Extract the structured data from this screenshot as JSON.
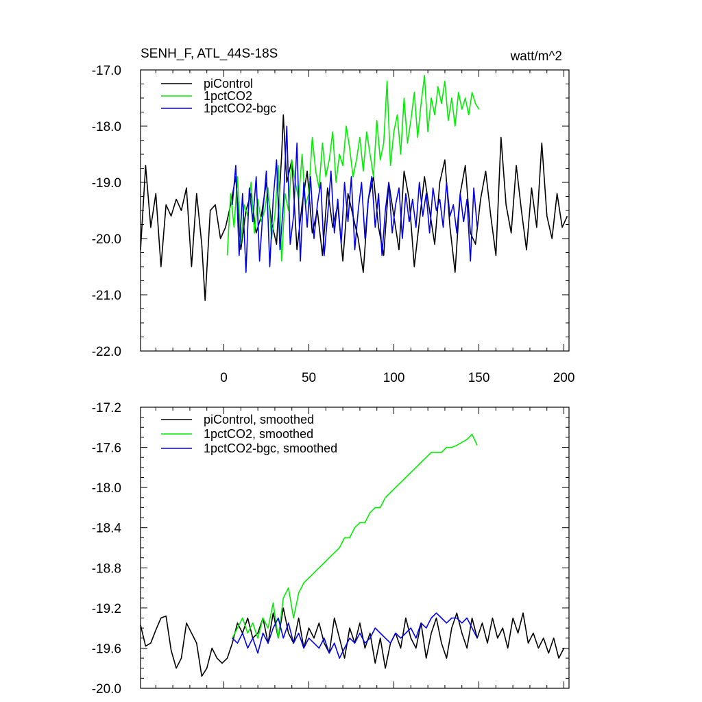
{
  "figure": {
    "title_left": "SENH_F, ATL_44S-18S",
    "title_right": "watt/m^2"
  },
  "colors": {
    "piControl": "#000000",
    "1pctCO2": "#00ee00",
    "1pctCO2-bgc": "#0000ee"
  },
  "chart_data": [
    {
      "type": "line",
      "panel": "top",
      "xlim": [
        -49,
        203
      ],
      "ylim": [
        -22.0,
        -17.0
      ],
      "xticks": [
        0,
        50,
        100,
        150,
        200
      ],
      "xtick_labels": [
        "0",
        "50",
        "100",
        "150",
        "200"
      ],
      "yticks": [
        -22.0,
        -21.0,
        -20.0,
        -19.0,
        -18.0,
        -17.0
      ],
      "ytick_labels": [
        "-22.0",
        "-21.0",
        "-20.0",
        "-19.0",
        "-18.0",
        "-17.0"
      ],
      "legend_position": "top-left",
      "series": [
        {
          "name": "piControl",
          "color": "#000000",
          "x": [
            -49,
            -46,
            -43,
            -40,
            -37,
            -34,
            -31,
            -28,
            -25,
            -22,
            -19,
            -16,
            -13,
            -11,
            -8,
            -5,
            -2,
            1,
            4,
            7,
            10,
            13,
            16,
            19,
            22,
            25,
            28,
            31,
            34,
            35,
            37,
            40,
            43,
            46,
            49,
            52,
            55,
            58,
            61,
            64,
            67,
            70,
            73,
            76,
            79,
            82,
            85,
            88,
            91,
            94,
            97,
            100,
            103,
            106,
            109,
            112,
            115,
            118,
            121,
            124,
            127,
            130,
            133,
            136,
            139,
            142,
            145,
            148,
            151,
            154,
            157,
            160,
            163,
            166,
            169,
            172,
            175,
            178,
            181,
            184,
            187,
            190,
            193,
            196,
            199,
            202
          ],
          "y": [
            -20.2,
            -18.7,
            -19.8,
            -19.2,
            -20.5,
            -19.4,
            -19.6,
            -19.3,
            -19.5,
            -19.1,
            -20.5,
            -19.2,
            -20.1,
            -21.1,
            -19.5,
            -19.4,
            -20.0,
            -19.8,
            -19.4,
            -18.9,
            -20.2,
            -19.5,
            -19.2,
            -19.9,
            -19.6,
            -19.0,
            -19.7,
            -20.1,
            -18.5,
            -17.8,
            -19.0,
            -18.6,
            -20.2,
            -19.4,
            -18.8,
            -19.9,
            -19.5,
            -20.3,
            -19.1,
            -19.8,
            -19.4,
            -20.4,
            -19.2,
            -19.6,
            -20.0,
            -20.6,
            -19.3,
            -18.9,
            -19.8,
            -20.3,
            -19.0,
            -19.6,
            -20.2,
            -18.8,
            -19.3,
            -20.5,
            -19.7,
            -18.9,
            -19.5,
            -20.1,
            -19.0,
            -18.6,
            -19.8,
            -20.6,
            -19.2,
            -18.7,
            -19.9,
            -20.1,
            -19.3,
            -18.8,
            -19.6,
            -20.3,
            -18.2,
            -19.4,
            -19.9,
            -18.7,
            -19.5,
            -20.2,
            -19.1,
            -19.8,
            -18.3,
            -19.6,
            -20.0,
            -19.2,
            -19.8,
            -19.6
          ]
        },
        {
          "name": "1pctCO2",
          "color": "#00ee00",
          "x": [
            2,
            4,
            6,
            8,
            10,
            12,
            14,
            16,
            18,
            20,
            22,
            24,
            26,
            28,
            30,
            32,
            34,
            36,
            38,
            40,
            42,
            44,
            46,
            48,
            50,
            52,
            54,
            56,
            58,
            60,
            62,
            64,
            66,
            68,
            70,
            72,
            74,
            76,
            78,
            80,
            82,
            84,
            86,
            88,
            90,
            92,
            94,
            96,
            98,
            100,
            102,
            104,
            106,
            108,
            110,
            112,
            114,
            116,
            118,
            120,
            122,
            124,
            126,
            128,
            130,
            132,
            134,
            136,
            138,
            140,
            142,
            144,
            146,
            148,
            150
          ],
          "y": [
            -20.3,
            -19.2,
            -19.8,
            -18.9,
            -20.1,
            -19.4,
            -19.6,
            -19.0,
            -19.9,
            -19.3,
            -19.7,
            -19.5,
            -19.1,
            -20.0,
            -19.6,
            -18.7,
            -20.4,
            -19.2,
            -19.5,
            -18.6,
            -19.0,
            -19.3,
            -18.5,
            -19.4,
            -19.2,
            -18.2,
            -18.8,
            -19.1,
            -18.3,
            -18.9,
            -18.6,
            -18.1,
            -19.0,
            -18.5,
            -18.7,
            -18.0,
            -18.4,
            -18.9,
            -18.6,
            -18.2,
            -18.8,
            -18.1,
            -18.5,
            -18.9,
            -17.9,
            -18.6,
            -18.3,
            -17.2,
            -18.7,
            -18.1,
            -17.8,
            -18.5,
            -17.5,
            -18.3,
            -17.9,
            -17.4,
            -18.2,
            -17.6,
            -17.1,
            -18.1,
            -17.5,
            -17.8,
            -17.3,
            -17.6,
            -17.2,
            -17.9,
            -17.5,
            -18.0,
            -17.4,
            -17.7,
            -17.5,
            -17.8,
            -17.4,
            -17.6,
            -17.7
          ]
        },
        {
          "name": "1pctCO2-bgc",
          "color": "#0000ee",
          "x": [
            5,
            7,
            9,
            11,
            13,
            15,
            17,
            19,
            21,
            23,
            25,
            27,
            29,
            31,
            33,
            35,
            37,
            39,
            41,
            43,
            45,
            47,
            49,
            51,
            53,
            55,
            57,
            59,
            61,
            63,
            65,
            67,
            69,
            71,
            73,
            75,
            77,
            79,
            81,
            83,
            85,
            87,
            89,
            91,
            93,
            95,
            97,
            99,
            101,
            103,
            105,
            107,
            109,
            111,
            113,
            115,
            117,
            119,
            121,
            123,
            125,
            127,
            129,
            131,
            133,
            135,
            137,
            139,
            141,
            143,
            145,
            147,
            149
          ],
          "y": [
            -19.4,
            -18.7,
            -20.3,
            -19.2,
            -20.6,
            -19.1,
            -19.7,
            -18.9,
            -20.4,
            -19.5,
            -18.8,
            -20.5,
            -19.3,
            -18.6,
            -20.2,
            -19.4,
            -18.0,
            -20.1,
            -19.6,
            -18.3,
            -20.4,
            -19.0,
            -19.8,
            -18.9,
            -20.0,
            -19.4,
            -19.0,
            -20.3,
            -19.6,
            -18.8,
            -19.9,
            -19.3,
            -20.1,
            -19.0,
            -19.7,
            -18.9,
            -20.2,
            -19.5,
            -19.0,
            -20.0,
            -19.3,
            -18.9,
            -19.8,
            -19.2,
            -20.3,
            -19.5,
            -19.0,
            -19.9,
            -19.4,
            -19.1,
            -20.0,
            -19.2,
            -19.7,
            -19.3,
            -19.8,
            -19.0,
            -19.6,
            -19.2,
            -19.9,
            -19.1,
            -19.5,
            -19.3,
            -19.8,
            -19.0,
            -19.6,
            -19.4,
            -19.9,
            -19.2,
            -19.7,
            -19.3,
            -20.4,
            -19.1,
            -19.8
          ]
        }
      ]
    },
    {
      "type": "line",
      "panel": "bottom",
      "xlim": [
        -49,
        203
      ],
      "ylim": [
        -20.0,
        -17.2
      ],
      "xticks": [
        0,
        50,
        100,
        150,
        200
      ],
      "yticks": [
        -20.0,
        -19.6,
        -19.2,
        -18.8,
        -18.4,
        -18.0,
        -17.6,
        -17.2
      ],
      "ytick_labels": [
        "-20.0",
        "-19.6",
        "-19.2",
        "-18.8",
        "-18.4",
        "-18.0",
        "-17.6",
        "-17.2"
      ],
      "legend_position": "top-left",
      "series": [
        {
          "name": "piControl, smoothed",
          "color": "#000000",
          "x": [
            -49,
            -46,
            -43,
            -40,
            -37,
            -34,
            -31,
            -28,
            -25,
            -22,
            -19,
            -16,
            -13,
            -10,
            -7,
            -4,
            -1,
            2,
            5,
            8,
            11,
            14,
            17,
            20,
            23,
            26,
            29,
            32,
            35,
            38,
            41,
            44,
            47,
            50,
            53,
            56,
            59,
            62,
            65,
            68,
            71,
            74,
            77,
            80,
            83,
            86,
            89,
            92,
            95,
            98,
            101,
            104,
            107,
            110,
            113,
            116,
            119,
            122,
            125,
            128,
            131,
            134,
            137,
            140,
            143,
            146,
            149,
            152,
            155,
            158,
            161,
            164,
            167,
            170,
            173,
            176,
            179,
            182,
            185,
            188,
            191,
            194,
            197,
            200
          ],
          "y": [
            -19.37,
            -19.58,
            -19.55,
            -19.42,
            -19.3,
            -19.28,
            -19.62,
            -19.8,
            -19.7,
            -19.35,
            -19.45,
            -19.55,
            -19.88,
            -19.8,
            -19.6,
            -19.7,
            -19.75,
            -19.7,
            -19.55,
            -19.35,
            -19.45,
            -19.3,
            -19.5,
            -19.45,
            -19.3,
            -19.55,
            -19.25,
            -19.5,
            -19.2,
            -19.45,
            -19.55,
            -19.3,
            -19.6,
            -19.4,
            -19.5,
            -19.35,
            -19.55,
            -19.65,
            -19.3,
            -19.5,
            -19.7,
            -19.4,
            -19.55,
            -19.35,
            -19.6,
            -19.45,
            -19.75,
            -19.5,
            -19.8,
            -19.55,
            -19.45,
            -19.6,
            -19.3,
            -19.5,
            -19.6,
            -19.35,
            -19.7,
            -19.45,
            -19.3,
            -19.55,
            -19.7,
            -19.4,
            -19.25,
            -19.45,
            -19.6,
            -19.3,
            -19.5,
            -19.35,
            -19.55,
            -19.3,
            -19.5,
            -19.4,
            -19.6,
            -19.3,
            -19.45,
            -19.25,
            -19.55,
            -19.45,
            -19.6,
            -19.5,
            -19.65,
            -19.5,
            -19.7,
            -19.6
          ]
        },
        {
          "name": "1pctCO2, smoothed",
          "color": "#00ee00",
          "x": [
            5,
            8,
            11,
            14,
            17,
            20,
            23,
            26,
            29,
            32,
            35,
            38,
            41,
            44,
            47,
            50,
            53,
            56,
            59,
            62,
            65,
            68,
            71,
            74,
            77,
            80,
            83,
            86,
            89,
            92,
            95,
            98,
            101,
            104,
            107,
            110,
            113,
            116,
            119,
            122,
            125,
            128,
            131,
            134,
            137,
            140,
            143,
            146,
            149
          ],
          "y": [
            -19.5,
            -19.4,
            -19.3,
            -19.45,
            -19.35,
            -19.5,
            -19.3,
            -19.4,
            -19.15,
            -19.5,
            -19.1,
            -19.0,
            -19.3,
            -19.05,
            -18.95,
            -18.9,
            -18.85,
            -18.8,
            -18.75,
            -18.7,
            -18.65,
            -18.6,
            -18.5,
            -18.5,
            -18.4,
            -18.35,
            -18.35,
            -18.25,
            -18.2,
            -18.2,
            -18.1,
            -18.05,
            -18.0,
            -17.95,
            -17.9,
            -17.85,
            -17.8,
            -17.75,
            -17.7,
            -17.65,
            -17.65,
            -17.65,
            -17.6,
            -17.6,
            -17.58,
            -17.55,
            -17.52,
            -17.47,
            -17.58
          ]
        },
        {
          "name": "1pctCO2-bgc, smoothed",
          "color": "#0000ee",
          "x": [
            5,
            8,
            11,
            14,
            17,
            20,
            23,
            26,
            29,
            32,
            35,
            38,
            41,
            44,
            47,
            50,
            53,
            56,
            59,
            62,
            65,
            68,
            71,
            74,
            77,
            80,
            83,
            86,
            89,
            92,
            95,
            98,
            101,
            104,
            107,
            110,
            113,
            116,
            119,
            122,
            125,
            128,
            131,
            134,
            137,
            140,
            143,
            146,
            149
          ],
          "y": [
            -19.5,
            -19.55,
            -19.45,
            -19.6,
            -19.5,
            -19.65,
            -19.45,
            -19.55,
            -19.4,
            -19.3,
            -19.5,
            -19.35,
            -19.55,
            -19.45,
            -19.6,
            -19.5,
            -19.55,
            -19.6,
            -19.5,
            -19.65,
            -19.55,
            -19.7,
            -19.6,
            -19.5,
            -19.55,
            -19.45,
            -19.55,
            -19.5,
            -19.4,
            -19.45,
            -19.5,
            -19.55,
            -19.45,
            -19.5,
            -19.45,
            -19.4,
            -19.5,
            -19.35,
            -19.4,
            -19.3,
            -19.25,
            -19.3,
            -19.35,
            -19.3,
            -19.3,
            -19.35,
            -19.3,
            -19.4,
            -19.5
          ]
        }
      ]
    }
  ]
}
